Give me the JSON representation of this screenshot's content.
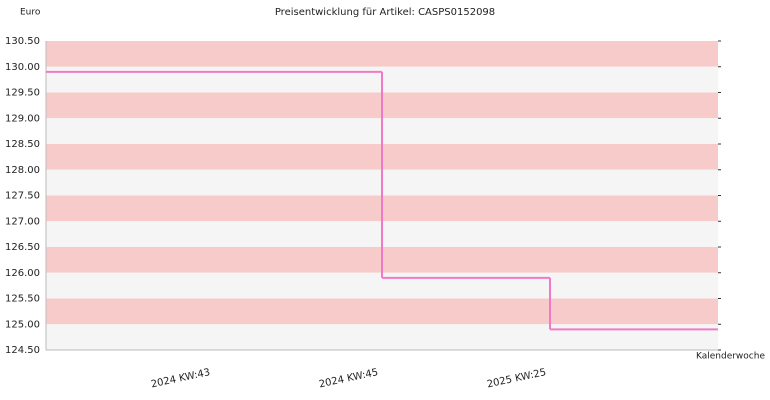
{
  "chart_data": {
    "type": "step",
    "title": "Preisentwicklung für Artikel: CASPS0152098",
    "y_label": "Euro",
    "x_label": "Kalenderwoche",
    "categories": [
      "2024 KW:43",
      "2024 KW:45",
      "2025 KW:25"
    ],
    "values": [
      129.9,
      125.9,
      124.9
    ],
    "color": "#f07ac8",
    "band_colors": [
      "#f8cbcb",
      "#f5f5f5"
    ],
    "ylim": [
      124.5,
      130.5
    ],
    "yticks": [
      {
        "value": 124.5,
        "label": "124.50"
      },
      {
        "value": 125,
        "label": "125.00"
      },
      {
        "value": 125.5,
        "label": "125.50"
      },
      {
        "value": 126,
        "label": "126.00"
      },
      {
        "value": 126.5,
        "label": "126.50"
      },
      {
        "value": 127,
        "label": "127.00"
      },
      {
        "value": 127.5,
        "label": "127.50"
      },
      {
        "value": 128,
        "label": "128.00"
      },
      {
        "value": 128.5,
        "label": "128.50"
      },
      {
        "value": 129,
        "label": "129.00"
      },
      {
        "value": 129.5,
        "label": "129.50"
      },
      {
        "value": 130,
        "label": "130.00"
      },
      {
        "value": 130.5,
        "label": "130.50"
      }
    ]
  }
}
